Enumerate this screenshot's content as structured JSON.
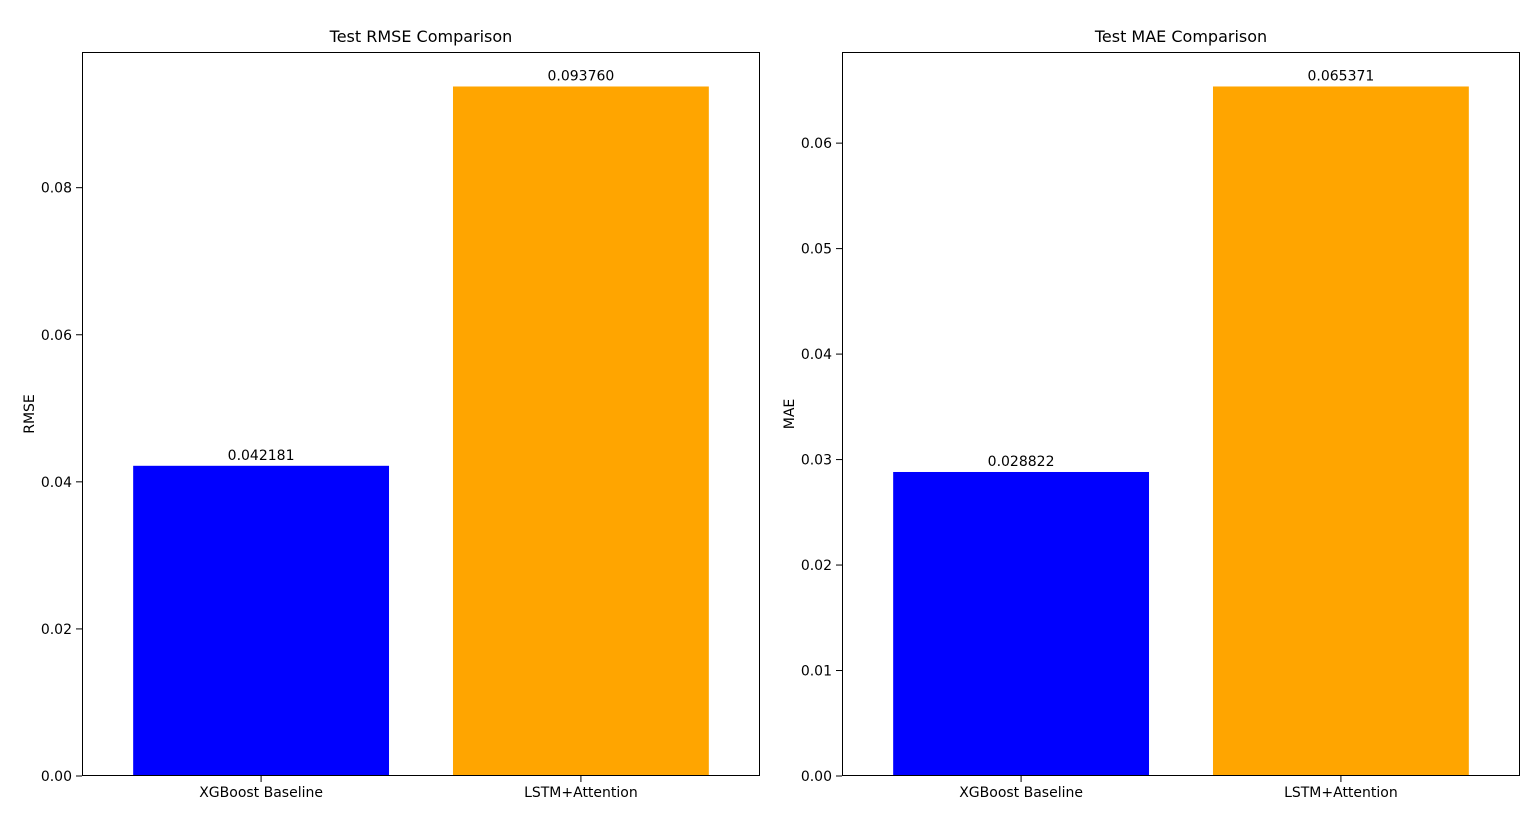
{
  "chart_data": [
    {
      "type": "bar",
      "title": "Test RMSE Comparison",
      "xlabel": "",
      "ylabel": "RMSE",
      "categories": [
        "XGBoost Baseline",
        "LSTM+Attention"
      ],
      "values": [
        0.042181,
        0.09376
      ],
      "value_labels": [
        "0.042181",
        "0.093760"
      ],
      "bar_colors": [
        "#0000ff",
        "#ffa500"
      ],
      "ylim": [
        0,
        0.09845
      ],
      "yticks": [
        0.0,
        0.02,
        0.04,
        0.06,
        0.08
      ],
      "ytick_labels": [
        "0.00",
        "0.02",
        "0.04",
        "0.06",
        "0.08"
      ],
      "grid": false,
      "legend": "none"
    },
    {
      "type": "bar",
      "title": "Test MAE Comparison",
      "xlabel": "",
      "ylabel": "MAE",
      "categories": [
        "XGBoost Baseline",
        "LSTM+Attention"
      ],
      "values": [
        0.028822,
        0.065371
      ],
      "value_labels": [
        "0.028822",
        "0.065371"
      ],
      "bar_colors": [
        "#0000ff",
        "#ffa500"
      ],
      "ylim": [
        0,
        0.06864
      ],
      "yticks": [
        0.0,
        0.01,
        0.02,
        0.03,
        0.04,
        0.05,
        0.06
      ],
      "ytick_labels": [
        "0.00",
        "0.01",
        "0.02",
        "0.03",
        "0.04",
        "0.05",
        "0.06"
      ],
      "grid": false,
      "legend": "none"
    }
  ]
}
